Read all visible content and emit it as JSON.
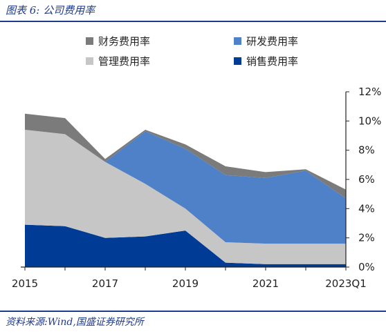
{
  "header": {
    "figure_title": "图表 6:  公司费用率"
  },
  "footer": {
    "source": "资料来源:Wind,国盛证券研究所"
  },
  "chart_data": {
    "type": "area",
    "stacked": true,
    "x_tick_labels": [
      "2015",
      "2017",
      "2019",
      "2021",
      "2023Q1"
    ],
    "x": [
      "2015",
      "2016",
      "2017",
      "2018",
      "2019",
      "2020",
      "2021",
      "2022",
      "2023Q1"
    ],
    "y_ticks": [
      "0%",
      "2%",
      "4%",
      "6%",
      "8%",
      "10%",
      "12%"
    ],
    "ylim": [
      0,
      12
    ],
    "y_axis_side": "right",
    "legend_position": "top",
    "series": [
      {
        "name": "销售费用率",
        "color": "#003b95",
        "values": [
          2.9,
          2.8,
          2.0,
          2.1,
          2.5,
          0.3,
          0.2,
          0.2,
          0.2
        ]
      },
      {
        "name": "管理费用率",
        "color": "#c6c6c6",
        "values": [
          6.5,
          6.3,
          5.2,
          3.6,
          1.5,
          1.4,
          1.4,
          1.4,
          1.4
        ]
      },
      {
        "name": "研发费用率",
        "color": "#4f81c9",
        "values": [
          0.0,
          0.0,
          0.0,
          3.6,
          4.1,
          4.6,
          4.5,
          5.0,
          3.1
        ]
      },
      {
        "name": "财务费用率",
        "color": "#7b7b7b",
        "values": [
          1.1,
          1.1,
          0.2,
          0.1,
          0.3,
          0.6,
          0.4,
          0.1,
          0.6
        ]
      }
    ],
    "legend_order": [
      "财务费用率",
      "研发费用率",
      "管理费用率",
      "销售费用率"
    ]
  }
}
